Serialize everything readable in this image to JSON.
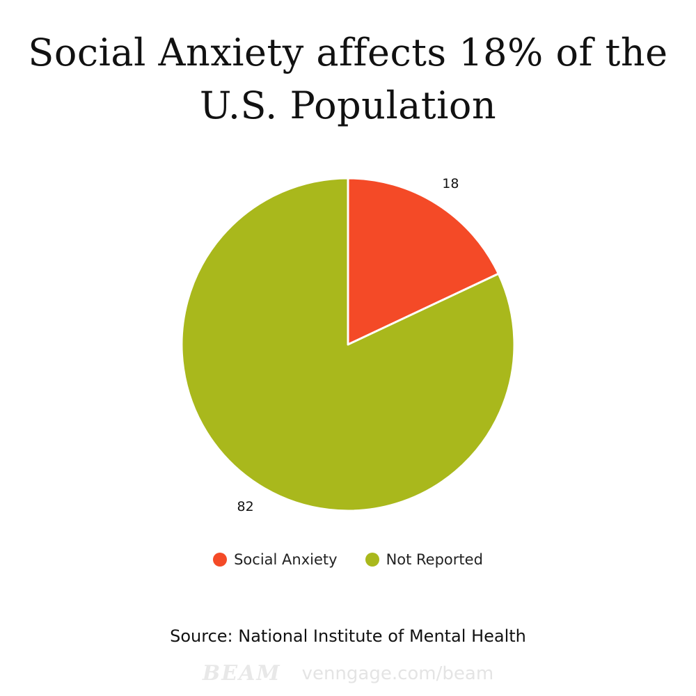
{
  "title": "Social Anxiety affects 18% of the U.S. Population",
  "chart_data": {
    "type": "pie",
    "title": "Social Anxiety affects 18% of the U.S. Population",
    "categories": [
      "Social Anxiety",
      "Not Reported"
    ],
    "values": [
      18,
      82
    ],
    "colors": [
      "#F44A27",
      "#A9B81C"
    ],
    "data_labels": [
      "18",
      "82"
    ],
    "start_angle_deg": 0,
    "direction": "clockwise",
    "legend_position": "bottom"
  },
  "legend": {
    "items": [
      {
        "label": "Social Anxiety",
        "color": "#F44A27"
      },
      {
        "label": "Not Reported",
        "color": "#A9B81C"
      }
    ]
  },
  "source": "Source: National Institute of Mental Health",
  "footer": {
    "brand": "BEAM",
    "url": "venngage.com/beam"
  }
}
